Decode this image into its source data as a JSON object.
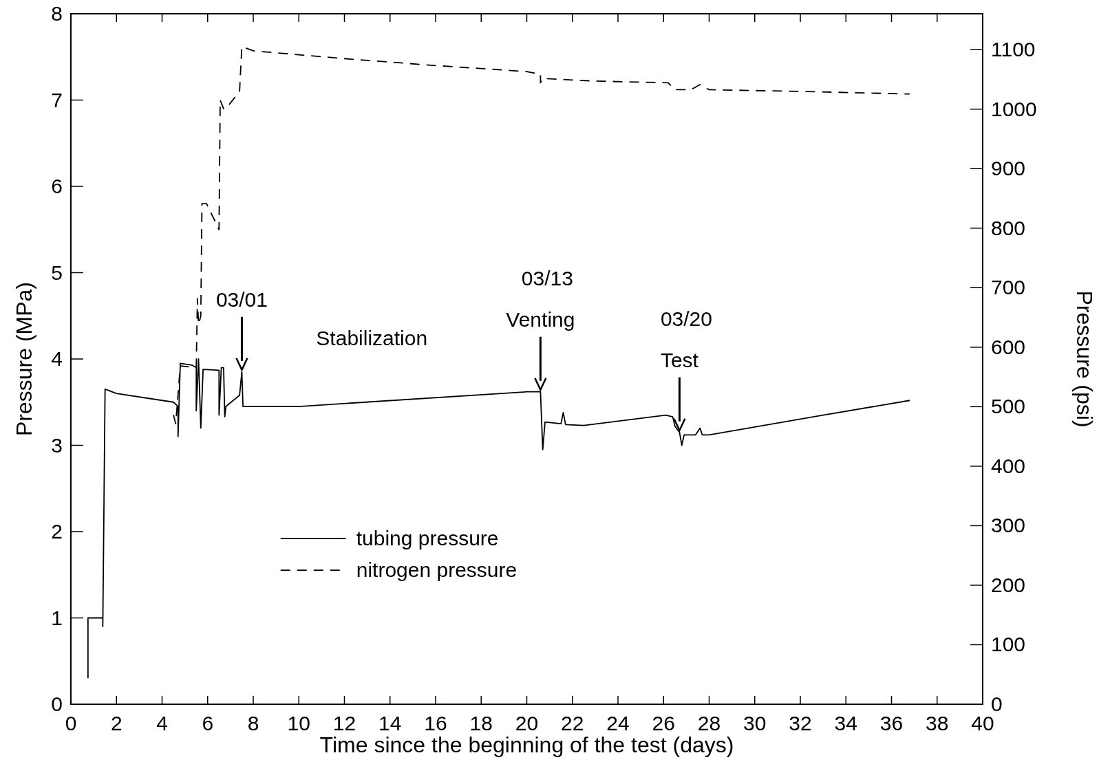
{
  "chart_data": {
    "type": "line",
    "xlabel": "Time since the beginning of the test (days)",
    "ylabel": "Pressure (MPa)",
    "y2label": "Pressure (psi)",
    "xlim": [
      0,
      40
    ],
    "xticks": [
      0,
      2,
      4,
      6,
      8,
      10,
      12,
      14,
      16,
      18,
      20,
      22,
      24,
      26,
      28,
      30,
      32,
      34,
      36,
      38,
      40
    ],
    "ylim": [
      0,
      8
    ],
    "yticks": [
      0,
      1,
      2,
      3,
      4,
      5,
      6,
      7,
      8
    ],
    "y2lim": [
      0,
      1160.3
    ],
    "y2ticks": [
      0,
      100,
      200,
      300,
      400,
      500,
      600,
      700,
      800,
      900,
      1000,
      1100
    ],
    "legend": "bottom left",
    "grid": false,
    "series": [
      {
        "name": "tubing pressure",
        "color": "#000000",
        "line_style": "solid",
        "x": [
          0.75,
          0.75,
          1.4,
          1.4,
          1.5,
          2,
          4,
          4.5,
          4.7,
          4.7,
          4.8,
          5.3,
          5.5,
          5.5,
          5.6,
          5.7,
          5.8,
          6.5,
          6.5,
          6.6,
          6.7,
          6.75,
          6.8,
          7.4,
          7.5,
          7.55,
          8,
          10,
          20,
          20.6,
          20.7,
          20.8,
          21.5,
          21.6,
          21.7,
          22.5,
          24,
          26.1,
          26.4,
          26.5,
          26.7,
          26.8,
          26.9,
          27.4,
          27.6,
          27.7,
          28,
          33,
          36.8
        ],
        "values": [
          0.3,
          1.0,
          1.0,
          0.9,
          3.65,
          3.6,
          3.52,
          3.5,
          3.45,
          3.1,
          3.95,
          3.93,
          3.9,
          3.4,
          4.0,
          3.2,
          3.88,
          3.87,
          3.35,
          3.9,
          3.9,
          3.33,
          3.45,
          3.58,
          3.85,
          3.45,
          3.45,
          3.45,
          3.62,
          3.62,
          2.95,
          3.27,
          3.25,
          3.38,
          3.24,
          3.23,
          3.28,
          3.35,
          3.33,
          3.22,
          3.15,
          3.0,
          3.12,
          3.12,
          3.2,
          3.12,
          3.12,
          3.35,
          3.52
        ]
      },
      {
        "name": "nitrogen pressure",
        "color": "#000000",
        "line_style": "dashed",
        "x": [
          4.5,
          4.6,
          4.8,
          5.5,
          5.55,
          5.6,
          5.7,
          5.75,
          5.95,
          6.5,
          6.55,
          6.7,
          6.8,
          7.4,
          7.5,
          8,
          12,
          16,
          20,
          20.6,
          20.6,
          20.7,
          23,
          26.2,
          26.5,
          27.2,
          27.6,
          28,
          32,
          36.8
        ],
        "values": [
          3.35,
          3.25,
          3.92,
          3.9,
          4.7,
          4.4,
          4.5,
          5.8,
          5.8,
          5.5,
          7.0,
          6.9,
          6.9,
          7.1,
          7.62,
          7.57,
          7.48,
          7.4,
          7.33,
          7.3,
          7.2,
          7.25,
          7.22,
          7.2,
          7.12,
          7.12,
          7.18,
          7.12,
          7.1,
          7.07
        ]
      }
    ],
    "annotations": [
      {
        "text": "03/01",
        "x": 7.5,
        "y": 3.85
      },
      "Stabilization",
      "03/13",
      {
        "text": "Venting",
        "x": 20.6,
        "y": 3.62
      },
      "03/20",
      {
        "text": "Test",
        "x": 26.7,
        "y": 3.15
      }
    ]
  }
}
